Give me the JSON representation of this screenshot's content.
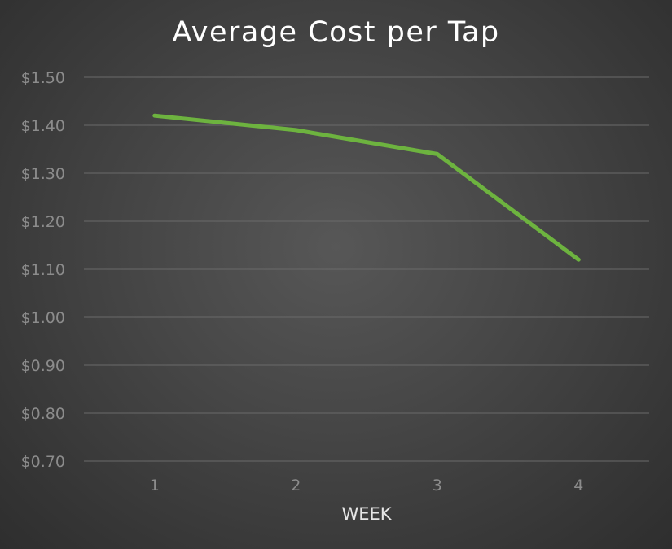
{
  "chart_data": {
    "type": "line",
    "title": "Average Cost per Tap",
    "xlabel": "WEEK",
    "ylabel": "",
    "categories": [
      "1",
      "2",
      "3",
      "4"
    ],
    "series": [
      {
        "values": [
          1.42,
          1.39,
          1.34,
          1.12
        ]
      }
    ],
    "ylim": [
      0.7,
      1.5
    ],
    "y_ticks": [
      1.5,
      1.4,
      1.3,
      1.2,
      1.1,
      1.0,
      0.9,
      0.8,
      0.7
    ],
    "y_tick_labels": [
      "$1.50",
      "$1.40",
      "$1.30",
      "$1.20",
      "$1.10",
      "$1.00",
      "$0.90",
      "$0.80",
      "$0.70"
    ],
    "grid": true,
    "legend": "none",
    "colors": {
      "line": "#6db33f",
      "background": "#474747",
      "gridline": "#6a6a6a",
      "tick_label": "#8c8c8c",
      "title": "#ffffff"
    }
  }
}
